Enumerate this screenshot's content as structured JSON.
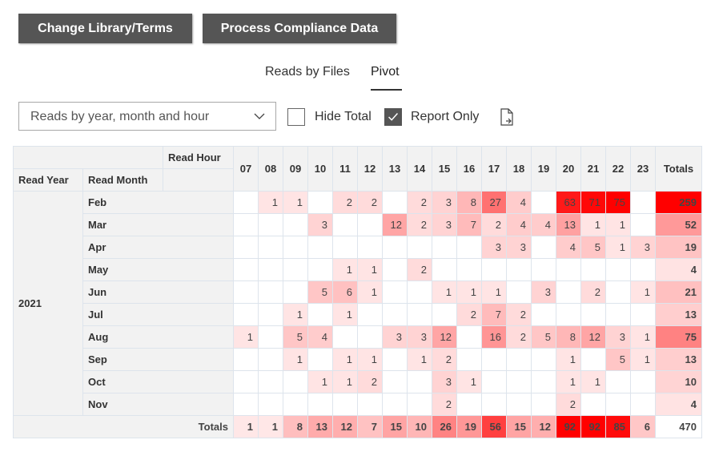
{
  "buttons": {
    "change_library": "Change Library/Terms",
    "process_compliance": "Process Compliance Data"
  },
  "tabs": [
    {
      "label": "Reads by Files",
      "active": false
    },
    {
      "label": "Pivot",
      "active": true
    }
  ],
  "controls": {
    "dropdown_value": "Reads by year, month and hour",
    "hide_total_label": "Hide Total",
    "hide_total_checked": false,
    "report_only_label": "Report Only",
    "report_only_checked": true,
    "export_icon": "export-file-icon"
  },
  "pivot": {
    "read_hour_label": "Read Hour",
    "read_year_label": "Read Year",
    "read_month_label": "Read Month",
    "totals_label": "Totals",
    "hours": [
      "07",
      "08",
      "09",
      "10",
      "11",
      "12",
      "13",
      "14",
      "15",
      "16",
      "17",
      "18",
      "19",
      "20",
      "21",
      "22",
      "23"
    ],
    "year": "2021",
    "rows": [
      {
        "month": "Feb",
        "values": [
          null,
          1,
          1,
          null,
          2,
          2,
          null,
          2,
          3,
          8,
          27,
          4,
          null,
          63,
          71,
          75,
          null
        ],
        "total": 259
      },
      {
        "month": "Mar",
        "values": [
          null,
          null,
          null,
          3,
          null,
          null,
          12,
          2,
          3,
          7,
          2,
          4,
          4,
          13,
          1,
          1,
          null
        ],
        "total": 52
      },
      {
        "month": "Apr",
        "values": [
          null,
          null,
          null,
          null,
          null,
          null,
          null,
          null,
          null,
          null,
          3,
          3,
          null,
          4,
          5,
          1,
          3
        ],
        "total": 19
      },
      {
        "month": "May",
        "values": [
          null,
          null,
          null,
          null,
          1,
          1,
          null,
          2,
          null,
          null,
          null,
          null,
          null,
          null,
          null,
          null,
          null
        ],
        "total": 4
      },
      {
        "month": "Jun",
        "values": [
          null,
          null,
          null,
          5,
          6,
          1,
          null,
          null,
          1,
          1,
          1,
          null,
          3,
          null,
          2,
          null,
          1
        ],
        "total": 21
      },
      {
        "month": "Jul",
        "values": [
          null,
          null,
          1,
          null,
          1,
          null,
          null,
          null,
          null,
          2,
          7,
          2,
          null,
          null,
          null,
          null,
          null
        ],
        "total": 13
      },
      {
        "month": "Aug",
        "values": [
          1,
          null,
          5,
          4,
          null,
          null,
          3,
          3,
          12,
          null,
          16,
          2,
          5,
          8,
          12,
          3,
          1
        ],
        "total": 75
      },
      {
        "month": "Sep",
        "values": [
          null,
          null,
          1,
          null,
          1,
          1,
          null,
          1,
          2,
          null,
          null,
          null,
          null,
          1,
          null,
          5,
          1
        ],
        "total": 13
      },
      {
        "month": "Oct",
        "values": [
          null,
          null,
          null,
          1,
          1,
          2,
          null,
          null,
          3,
          1,
          null,
          null,
          null,
          1,
          1,
          null,
          null
        ],
        "total": 10
      },
      {
        "month": "Nov",
        "values": [
          null,
          null,
          null,
          null,
          null,
          null,
          null,
          null,
          2,
          null,
          null,
          null,
          null,
          2,
          null,
          null,
          null
        ],
        "total": 4
      }
    ],
    "column_totals": [
      1,
      1,
      8,
      13,
      12,
      7,
      15,
      10,
      26,
      19,
      56,
      15,
      12,
      92,
      92,
      85,
      6
    ],
    "grand_total": 470
  },
  "colors": {
    "button_bg": "#555555",
    "heat_max": "#ff0000",
    "header_bg": "#f2f2f2"
  }
}
